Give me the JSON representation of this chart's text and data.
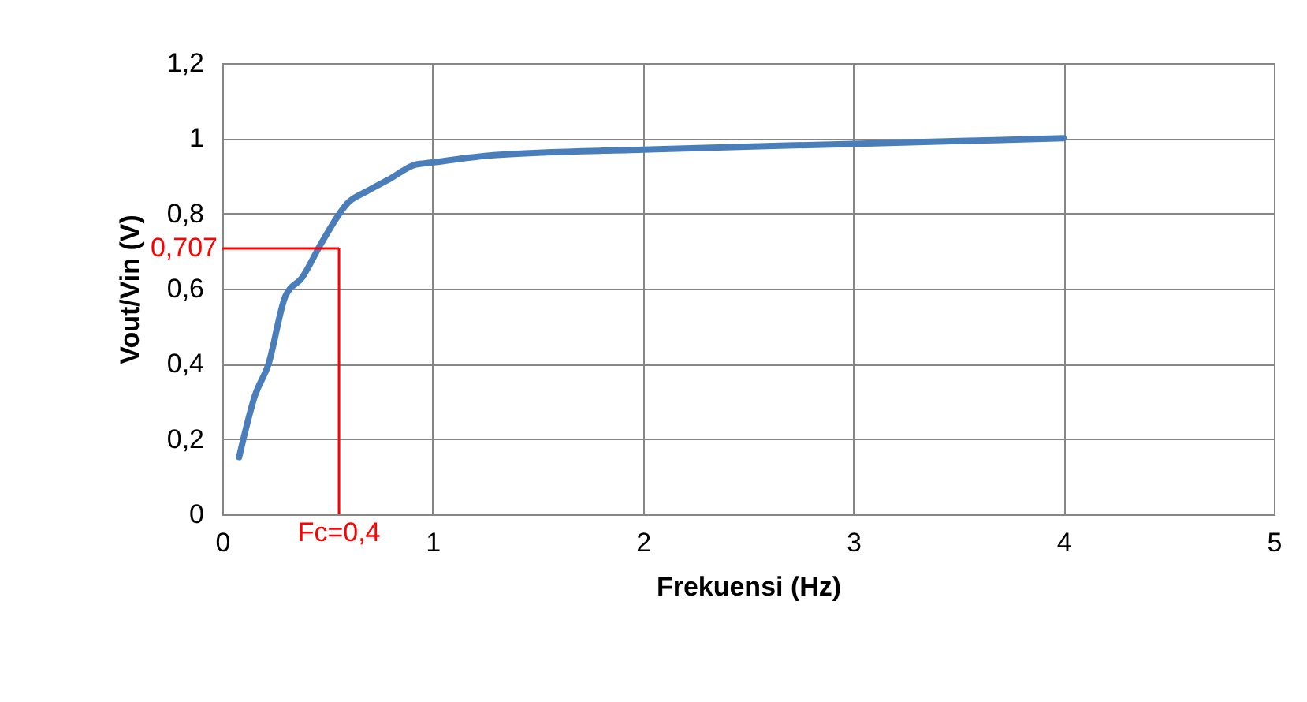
{
  "chart_data": {
    "type": "line",
    "xlabel": "Frekuensi (Hz)",
    "ylabel": "Vout/Vin (V)",
    "x": [
      0.08,
      0.155,
      0.22,
      0.3,
      0.38,
      0.47,
      0.6,
      0.69,
      0.79,
      0.92,
      0.99,
      1.29,
      2.0,
      3.0,
      4.0
    ],
    "series": [
      {
        "color": "#4a7ebb",
        "values": [
          0.152,
          0.315,
          0.4,
          0.58,
          0.63,
          0.72,
          0.83,
          0.86,
          0.89,
          0.93,
          0.935,
          0.955,
          0.97,
          0.985,
          1.0
        ]
      }
    ],
    "xlim": [
      0,
      5
    ],
    "xticks": [
      0,
      1,
      2,
      3,
      4,
      5
    ],
    "ylim": [
      0,
      1.2
    ],
    "yticks": [
      0,
      {
        "value": 0.2,
        "label": "0,2"
      },
      {
        "value": 0.4,
        "label": "0,4"
      },
      {
        "value": 0.6,
        "label": "0,6"
      },
      {
        "value": 0.8,
        "label": "0,8"
      },
      1,
      {
        "value": 1.2,
        "label": "1,2"
      }
    ],
    "grid": true,
    "marker": "none",
    "line_style": "solid",
    "annotations": [
      "Fc=0,4"
    ],
    "ref_lines": [
      {
        "axis": "y",
        "value": 0.707,
        "label": "0,707",
        "color": "#ff0000"
      },
      {
        "axis": "x",
        "value": 0.555,
        "color": "#ff0000"
      }
    ]
  }
}
